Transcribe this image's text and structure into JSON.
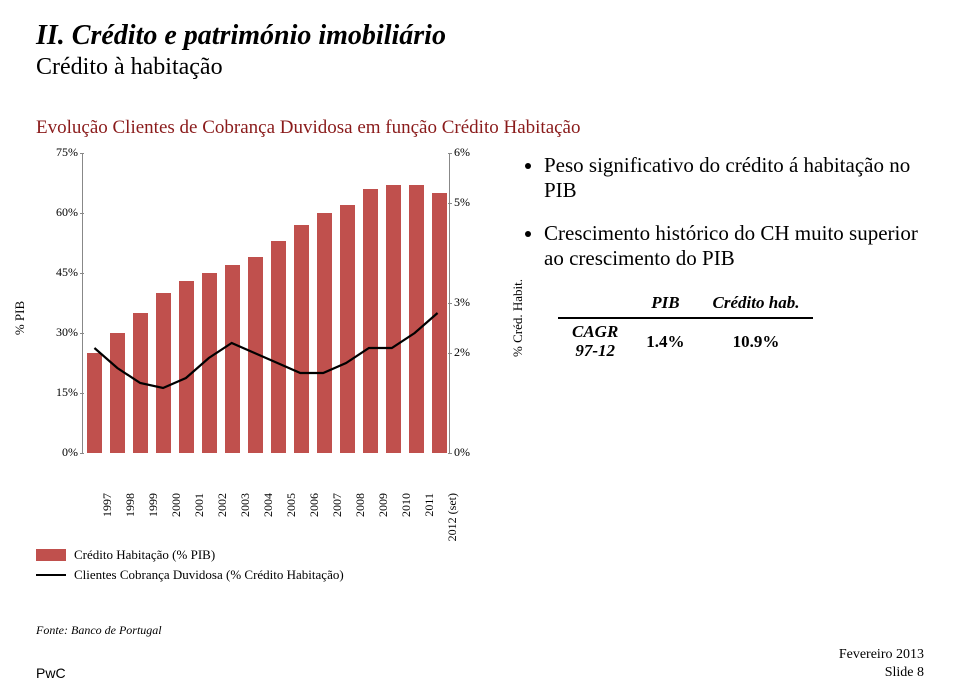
{
  "header": {
    "title": "II. Crédito e património imobiliário",
    "title_fontsize": 28,
    "subtitle": "Crédito à habitação",
    "subtitle_fontsize": 24,
    "section_title": "Evolução Clientes de Cobrança Duvidosa em função Crédito Habitação",
    "section_fontsize": 19,
    "section_color": "#8a1b1b"
  },
  "chart": {
    "type": "bar+line",
    "categories": [
      "1997",
      "1998",
      "1999",
      "2000",
      "2001",
      "2002",
      "2003",
      "2004",
      "2005",
      "2006",
      "2007",
      "2008",
      "2009",
      "2010",
      "2011",
      "2012 (set)"
    ],
    "bar_values_pct_pib": [
      25,
      30,
      35,
      40,
      43,
      45,
      47,
      49,
      53,
      57,
      60,
      62,
      66,
      67,
      67,
      65
    ],
    "line_values_pct_cred": [
      2.1,
      1.7,
      1.4,
      1.3,
      1.5,
      1.9,
      2.2,
      2.0,
      1.8,
      1.6,
      1.6,
      1.8,
      2.1,
      2.1,
      2.4,
      2.8
    ],
    "y_left": {
      "label": "% PIB",
      "min": 0,
      "max": 75,
      "step": 15,
      "ticks": [
        "0%",
        "15%",
        "30%",
        "45%",
        "60%",
        "75%"
      ]
    },
    "y_right": {
      "label": "% Créd. Habit.",
      "min": 0,
      "max": 6,
      "ticks_at": [
        0,
        2,
        3,
        5,
        6
      ],
      "ticks": [
        "0%",
        "2%",
        "3%",
        "5%",
        "6%"
      ]
    },
    "bar_color": "#c0504d",
    "line_color": "#000000",
    "line_width": 2.2,
    "bar_width_ratio": 0.62,
    "axis_label_fontsize": 13,
    "tick_fontsize": 12,
    "legend": {
      "items": [
        {
          "type": "bar",
          "label": "Crédito Habitação (% PIB)",
          "color": "#c0504d"
        },
        {
          "type": "line",
          "label": "Clientes Cobrança Duvidosa (% Crédito Habitação)",
          "color": "#000000"
        }
      ],
      "fontsize": 13
    }
  },
  "bullets": {
    "fontsize": 21,
    "items": [
      "Peso significativo do crédito á habitação no PIB",
      "Crescimento histórico do CH muito superior ao crescimento do PIB"
    ]
  },
  "table": {
    "columns": [
      "",
      "PIB",
      "Crédito hab."
    ],
    "row_label_top": "CAGR",
    "row_label_bottom": "97-12",
    "values": [
      "1.4%",
      "10.9%"
    ],
    "header_fontsize": 17,
    "value_fontsize": 17
  },
  "source": "Fonte: Banco de Portugal",
  "footer": {
    "brand": "PwC",
    "date_line1": "Fevereiro 2013",
    "date_line2": "Slide 8"
  }
}
